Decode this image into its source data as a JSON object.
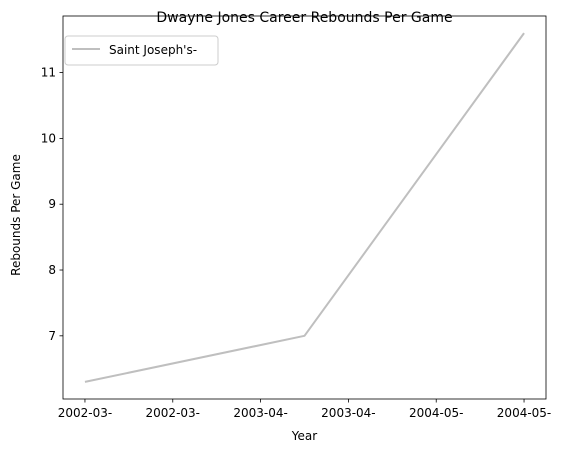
{
  "chart_data": {
    "type": "line",
    "title": "Dwayne Jones  Career Rebounds Per Game",
    "xlabel": "Year",
    "ylabel": "Rebounds Per Game",
    "categories": [
      "2002-03-",
      "2002-03-",
      "2003-04-",
      "2003-04-",
      "2004-05-",
      "2004-05-"
    ],
    "series": [
      {
        "name": "Saint Joseph's-",
        "color": "#bfbfbf",
        "points": [
          {
            "x": 0,
            "y": 6.3
          },
          {
            "x": 2.5,
            "y": 7.0
          },
          {
            "x": 5,
            "y": 11.6
          }
        ]
      }
    ],
    "xlim": [
      -0.25,
      5.25
    ],
    "ylim": [
      6.04,
      11.86
    ],
    "yticks": [
      7,
      8,
      9,
      10,
      11
    ],
    "grid": false,
    "legend_position": "upper left"
  }
}
